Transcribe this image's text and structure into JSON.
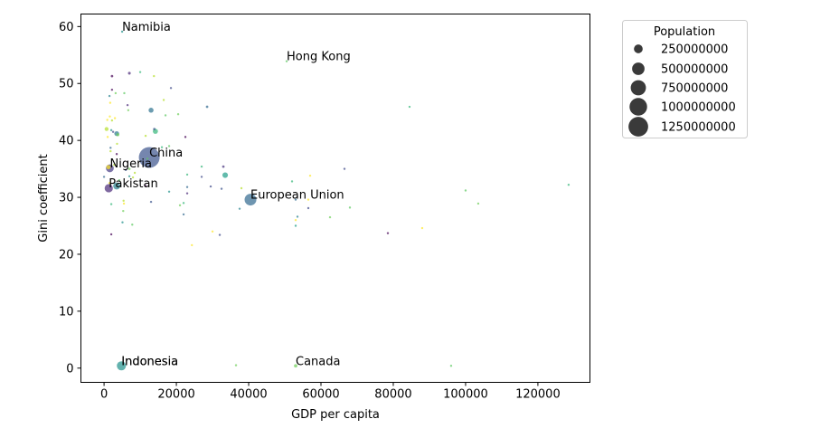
{
  "chart_data": {
    "type": "scatter",
    "xlabel": "GDP per capita",
    "ylabel": "Gini coefficient",
    "xlim": [
      -6400,
      134400
    ],
    "ylim": [
      -2.5,
      62.2
    ],
    "xticks": [
      0,
      20000,
      40000,
      60000,
      80000,
      100000,
      120000
    ],
    "xtick_labels": [
      "0",
      "20000",
      "40000",
      "60000",
      "80000",
      "100000",
      "120000"
    ],
    "yticks": [
      0,
      10,
      20,
      30,
      40,
      50,
      60
    ],
    "ytick_labels": [
      "0",
      "10",
      "20",
      "30",
      "40",
      "50",
      "60"
    ],
    "size_by": "Population",
    "color_by": "Population (viridis colormap, semi-transparent markers)",
    "legend": {
      "title": "Population",
      "placement": "outside right, top",
      "entries": [
        {
          "label": "250000000",
          "value": 250000000
        },
        {
          "label": "500000000",
          "value": 500000000
        },
        {
          "label": "750000000",
          "value": 750000000
        },
        {
          "label": "1000000000",
          "value": 1000000000
        },
        {
          "label": "1250000000",
          "value": 1250000000
        }
      ]
    },
    "labels": [
      {
        "text": "Namibia",
        "x": 5000,
        "y": 59.1
      },
      {
        "text": "Hong Kong",
        "x": 50500,
        "y": 53.9
      },
      {
        "text": "China",
        "x": 12500,
        "y": 37.0
      },
      {
        "text": "Nigeria",
        "x": 1600,
        "y": 35.1
      },
      {
        "text": "Pakistan",
        "x": 1300,
        "y": 31.6
      },
      {
        "text": "European Union",
        "x": 40500,
        "y": 29.6
      },
      {
        "text": "Indonesia",
        "x": 4800,
        "y": 0.4
      },
      {
        "text": "Indonesia",
        "x": 4800,
        "y": 0.4
      },
      {
        "text": "Canada",
        "x": 53000,
        "y": 0.4
      }
    ],
    "points": [
      {
        "x": 12500,
        "y": 37.0,
        "pop": 1400000000,
        "c": "#3b528b"
      },
      {
        "x": 40500,
        "y": 29.6,
        "pop": 447000000,
        "c": "#31688e"
      },
      {
        "x": 4800,
        "y": 0.4,
        "pop": 270000000,
        "c": "#21918c"
      },
      {
        "x": 1300,
        "y": 31.6,
        "pop": 220000000,
        "c": "#482878"
      },
      {
        "x": 1600,
        "y": 35.1,
        "pop": 200000000,
        "c": "#443983"
      },
      {
        "x": 3500,
        "y": 32.0,
        "pop": 160000000,
        "c": "#26828e"
      },
      {
        "x": 13000,
        "y": 45.3,
        "pop": 80000000,
        "c": "#2c728e"
      },
      {
        "x": 33500,
        "y": 33.9,
        "pop": 100000000,
        "c": "#1f9e89"
      },
      {
        "x": 14200,
        "y": 41.6,
        "pop": 85000000,
        "c": "#35b779"
      },
      {
        "x": 3500,
        "y": 41.2,
        "pop": 75000000,
        "c": "#2a788e"
      },
      {
        "x": 3800,
        "y": 41.0,
        "pop": 30000000,
        "c": "#6ece58"
      },
      {
        "x": 1200,
        "y": 35.3,
        "pop": 60000000,
        "c": "#fde725"
      },
      {
        "x": 700,
        "y": 42.0,
        "pop": 50000000,
        "c": "#b5de2b"
      },
      {
        "x": 5000,
        "y": 59.1,
        "pop": 2500000,
        "c": "#21918c"
      },
      {
        "x": 50500,
        "y": 53.9,
        "pop": 7500000,
        "c": "#5ec962"
      },
      {
        "x": 53000,
        "y": 0.4,
        "pop": 38000000,
        "c": "#6ece58"
      },
      {
        "x": 2200,
        "y": 51.3,
        "pop": 20000000,
        "c": "#440154"
      },
      {
        "x": 7000,
        "y": 51.8,
        "pop": 25000000,
        "c": "#482878"
      },
      {
        "x": 10000,
        "y": 52.0,
        "pop": 5000000,
        "c": "#35b779"
      },
      {
        "x": 13800,
        "y": 51.3,
        "pop": 8000000,
        "c": "#b5de2b"
      },
      {
        "x": 18500,
        "y": 49.2,
        "pop": 7000000,
        "c": "#3e4989"
      },
      {
        "x": 2200,
        "y": 48.9,
        "pop": 6000000,
        "c": "#440154"
      },
      {
        "x": 1500,
        "y": 47.8,
        "pop": 12000000,
        "c": "#26828e"
      },
      {
        "x": 3200,
        "y": 48.3,
        "pop": 10000000,
        "c": "#6ece58"
      },
      {
        "x": 5600,
        "y": 48.3,
        "pop": 10000000,
        "c": "#5ec962"
      },
      {
        "x": 16500,
        "y": 47.1,
        "pop": 6000000,
        "c": "#b5de2b"
      },
      {
        "x": 1700,
        "y": 46.6,
        "pop": 12000000,
        "c": "#fde725"
      },
      {
        "x": 6500,
        "y": 46.2,
        "pop": 8000000,
        "c": "#482878"
      },
      {
        "x": 28500,
        "y": 45.9,
        "pop": 20000000,
        "c": "#31688e"
      },
      {
        "x": 84500,
        "y": 45.9,
        "pop": 5000000,
        "c": "#35b779"
      },
      {
        "x": 6700,
        "y": 45.3,
        "pop": 10000000,
        "c": "#6ece58"
      },
      {
        "x": 1600,
        "y": 44.2,
        "pop": 8000000,
        "c": "#fde725"
      },
      {
        "x": 17000,
        "y": 44.4,
        "pop": 8000000,
        "c": "#5ec962"
      },
      {
        "x": 20500,
        "y": 44.6,
        "pop": 5000000,
        "c": "#6ece58"
      },
      {
        "x": 900,
        "y": 43.6,
        "pop": 8000000,
        "c": "#fde725"
      },
      {
        "x": 2200,
        "y": 43.5,
        "pop": 10000000,
        "c": "#b5de2b"
      },
      {
        "x": 2000,
        "y": 41.8,
        "pop": 10000000,
        "c": "#21918c"
      },
      {
        "x": 13900,
        "y": 42.0,
        "pop": 20000000,
        "c": "#3b528b"
      },
      {
        "x": 1000,
        "y": 40.6,
        "pop": 12000000,
        "c": "#fde725"
      },
      {
        "x": 11500,
        "y": 40.8,
        "pop": 12000000,
        "c": "#b5de2b"
      },
      {
        "x": 22500,
        "y": 40.6,
        "pop": 4000000,
        "c": "#440154"
      },
      {
        "x": 3600,
        "y": 39.4,
        "pop": 8000000,
        "c": "#b5de2b"
      },
      {
        "x": 1800,
        "y": 38.7,
        "pop": 12000000,
        "c": "#31688e"
      },
      {
        "x": 16000,
        "y": 38.8,
        "pop": 6000000,
        "c": "#35b779"
      },
      {
        "x": 18000,
        "y": 39.0,
        "pop": 5000000,
        "c": "#5ec962"
      },
      {
        "x": 1800,
        "y": 38.1,
        "pop": 6000000,
        "c": "#b5de2b"
      },
      {
        "x": 3500,
        "y": 37.6,
        "pop": 6000000,
        "c": "#440154"
      },
      {
        "x": 7000,
        "y": 35.0,
        "pop": 18000000,
        "c": "#6ece58"
      },
      {
        "x": 8500,
        "y": 34.3,
        "pop": 8000000,
        "c": "#b5de2b"
      },
      {
        "x": 7000,
        "y": 33.7,
        "pop": 6000000,
        "c": "#21918c"
      },
      {
        "x": 2800,
        "y": 35.7,
        "pop": 8000000,
        "c": "#b5de2b"
      },
      {
        "x": 27000,
        "y": 35.4,
        "pop": 4000000,
        "c": "#35b779"
      },
      {
        "x": 33000,
        "y": 35.4,
        "pop": 20000000,
        "c": "#46327e"
      },
      {
        "x": 66500,
        "y": 35.0,
        "pop": 4000000,
        "c": "#3e4989"
      },
      {
        "x": 23000,
        "y": 34.0,
        "pop": 4000000,
        "c": "#35b779"
      },
      {
        "x": 27000,
        "y": 33.6,
        "pop": 4000000,
        "c": "#3e4989"
      },
      {
        "x": 57000,
        "y": 33.8,
        "pop": 3000000,
        "c": "#fde725"
      },
      {
        "x": 0,
        "y": 33.6,
        "pop": 6000000,
        "c": "#31688e"
      },
      {
        "x": 4200,
        "y": 33.0,
        "pop": 10000000,
        "c": "#5ec962"
      },
      {
        "x": 52000,
        "y": 32.8,
        "pop": 5000000,
        "c": "#35b779"
      },
      {
        "x": 128500,
        "y": 32.2,
        "pop": 3000000,
        "c": "#35b779"
      },
      {
        "x": 1500,
        "y": 32.5,
        "pop": 10000000,
        "c": "#fde725"
      },
      {
        "x": 11500,
        "y": 32.0,
        "pop": 6000000,
        "c": "#440154"
      },
      {
        "x": 23000,
        "y": 31.8,
        "pop": 4000000,
        "c": "#31688e"
      },
      {
        "x": 29500,
        "y": 31.9,
        "pop": 3000000,
        "c": "#3e4989"
      },
      {
        "x": 32500,
        "y": 31.5,
        "pop": 10000000,
        "c": "#3b528b"
      },
      {
        "x": 38000,
        "y": 31.6,
        "pop": 12000000,
        "c": "#b5de2b"
      },
      {
        "x": 18000,
        "y": 31.0,
        "pop": 6000000,
        "c": "#21918c"
      },
      {
        "x": 23000,
        "y": 30.7,
        "pop": 4000000,
        "c": "#482878"
      },
      {
        "x": 100000,
        "y": 31.2,
        "pop": 4000000,
        "c": "#5ec962"
      },
      {
        "x": 53000,
        "y": 29.6,
        "pop": 8000000,
        "c": "#31688e"
      },
      {
        "x": 56500,
        "y": 29.6,
        "pop": 8000000,
        "c": "#fde725"
      },
      {
        "x": 5400,
        "y": 29.4,
        "pop": 10000000,
        "c": "#b5de2b"
      },
      {
        "x": 13000,
        "y": 29.2,
        "pop": 6000000,
        "c": "#3b528b"
      },
      {
        "x": 22000,
        "y": 29.0,
        "pop": 4000000,
        "c": "#35b779"
      },
      {
        "x": 5500,
        "y": 28.9,
        "pop": 6000000,
        "c": "#fde725"
      },
      {
        "x": 2000,
        "y": 28.8,
        "pop": 4000000,
        "c": "#35b779"
      },
      {
        "x": 21000,
        "y": 28.6,
        "pop": 4000000,
        "c": "#6ece58"
      },
      {
        "x": 103500,
        "y": 28.9,
        "pop": 4000000,
        "c": "#6ece58"
      },
      {
        "x": 37500,
        "y": 28.0,
        "pop": 4000000,
        "c": "#26828e"
      },
      {
        "x": 56500,
        "y": 28.1,
        "pop": 6000000,
        "c": "#3e4989"
      },
      {
        "x": 68000,
        "y": 28.2,
        "pop": 4000000,
        "c": "#5ec962"
      },
      {
        "x": 5300,
        "y": 27.6,
        "pop": 8000000,
        "c": "#6ece58"
      },
      {
        "x": 22000,
        "y": 27.0,
        "pop": 8000000,
        "c": "#31688e"
      },
      {
        "x": 53500,
        "y": 26.6,
        "pop": 4000000,
        "c": "#26828e"
      },
      {
        "x": 62500,
        "y": 26.5,
        "pop": 6000000,
        "c": "#6ece58"
      },
      {
        "x": 53000,
        "y": 26.0,
        "pop": 4000000,
        "c": "#fde725"
      },
      {
        "x": 5100,
        "y": 25.6,
        "pop": 8000000,
        "c": "#21918c"
      },
      {
        "x": 7800,
        "y": 25.2,
        "pop": 4000000,
        "c": "#5ec962"
      },
      {
        "x": 53000,
        "y": 25.0,
        "pop": 4000000,
        "c": "#1f9e89"
      },
      {
        "x": 88000,
        "y": 24.6,
        "pop": 4000000,
        "c": "#fde725"
      },
      {
        "x": 30000,
        "y": 24.0,
        "pop": 4000000,
        "c": "#fde725"
      },
      {
        "x": 78500,
        "y": 23.7,
        "pop": 4000000,
        "c": "#440154"
      },
      {
        "x": 2000,
        "y": 23.5,
        "pop": 6000000,
        "c": "#440154"
      },
      {
        "x": 32000,
        "y": 23.4,
        "pop": 4000000,
        "c": "#3e4989"
      },
      {
        "x": 24300,
        "y": 21.6,
        "pop": 4000000,
        "c": "#fde725"
      },
      {
        "x": 36500,
        "y": 0.5,
        "pop": 4000000,
        "c": "#6ece58"
      },
      {
        "x": 96000,
        "y": 0.4,
        "pop": 4000000,
        "c": "#5ec962"
      },
      {
        "x": 3000,
        "y": 43.9,
        "pop": 5000000,
        "c": "#fde725"
      },
      {
        "x": 12000,
        "y": 36.8,
        "pop": 6000000,
        "c": "#5ec962"
      },
      {
        "x": 2500,
        "y": 41.5,
        "pop": 6000000,
        "c": "#3e4989"
      },
      {
        "x": 8000,
        "y": 33.5,
        "pop": 5000000,
        "c": "#b5de2b"
      },
      {
        "x": 6000,
        "y": 34.8,
        "pop": 6000000,
        "c": "#3b528b"
      }
    ]
  }
}
